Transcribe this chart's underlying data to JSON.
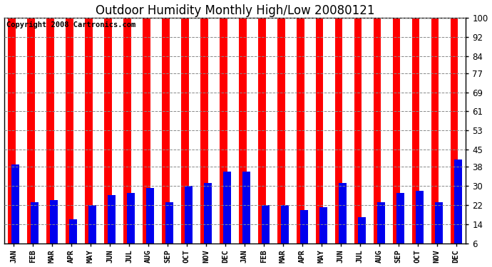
{
  "title": "Outdoor Humidity Monthly High/Low 20080121",
  "copyright": "Copyright 2008 Cartronics.com",
  "months": [
    "JAN",
    "FEB",
    "MAR",
    "APR",
    "MAY",
    "JUN",
    "JUL",
    "AUG",
    "SEP",
    "OCT",
    "NOV",
    "DEC",
    "JAN",
    "FEB",
    "MAR",
    "APR",
    "MAY",
    "JUN",
    "JUL",
    "AUG",
    "SEP",
    "OCT",
    "NOV",
    "DEC"
  ],
  "high_values": [
    100,
    100,
    100,
    100,
    100,
    100,
    100,
    100,
    100,
    100,
    100,
    100,
    100,
    100,
    100,
    100,
    100,
    100,
    100,
    100,
    100,
    100,
    100,
    100
  ],
  "low_values": [
    39,
    23,
    24,
    16,
    22,
    26,
    27,
    29,
    23,
    30,
    31,
    36,
    36,
    22,
    22,
    20,
    21,
    31,
    17,
    23,
    27,
    28,
    23,
    41
  ],
  "high_color": "#ff0000",
  "low_color": "#0000ee",
  "bg_color": "#ffffff",
  "yticks": [
    6,
    14,
    22,
    30,
    38,
    45,
    53,
    61,
    69,
    77,
    84,
    92,
    100
  ],
  "ymin": 6,
  "ymax": 100,
  "grid_color": "#888888",
  "title_fontsize": 12,
  "copyright_fontsize": 7.5
}
